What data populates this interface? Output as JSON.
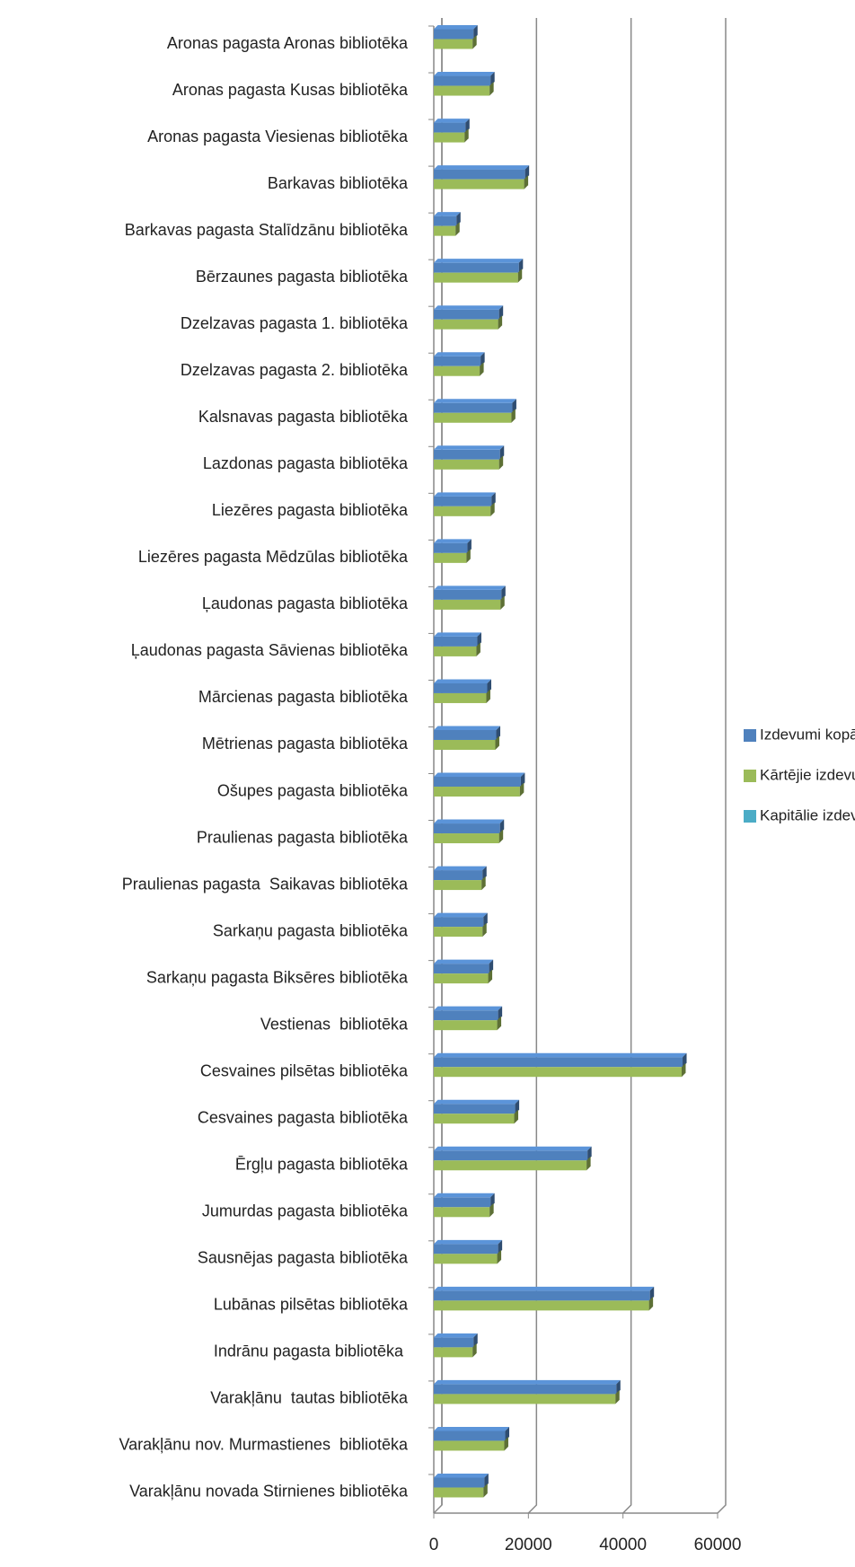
{
  "chart_data": {
    "type": "bar",
    "orientation": "horizontal",
    "categories": [
      "Aronas pagasta Aronas bibliotēka",
      "Aronas pagasta Kusas bibliotēka",
      "Aronas pagasta Viesienas bibliotēka",
      "Barkavas bibliotēka",
      "Barkavas pagasta Stalīdzānu bibliotēka",
      "Bērzaunes pagasta bibliotēka",
      "Dzelzavas pagasta 1. bibliotēka",
      "Dzelzavas pagasta 2. bibliotēka",
      "Kalsnavas pagasta bibliotēka",
      "Lazdonas pagasta bibliotēka",
      "Liezēres pagasta bibliotēka",
      "Liezēres pagasta Mēdzūlas bibliotēka",
      "Ļaudonas pagasta bibliotēka",
      "Ļaudonas pagasta Sāvienas bibliotēka",
      "Mārcienas pagasta bibliotēka",
      "Mētrienas pagasta bibliotēka",
      "Ošupes pagasta bibliotēka",
      "Praulienas pagasta bibliotēka",
      "Praulienas pagasta  Saikavas bibliotēka",
      "Sarkaņu pagasta bibliotēka",
      "Sarkaņu pagasta Biksēres bibliotēka",
      "Vestienas  bibliotēka",
      "Cesvaines pilsētas bibliotēka",
      "Cesvaines pagasta bibliotēka",
      "Ērgļu pagasta bibliotēka",
      "Jumurdas pagasta bibliotēka",
      "Sausnējas pagasta bibliotēka",
      "Lubānas pilsētas bibliotēka",
      "Indrānu pagasta bibliotēka ",
      "Varakļānu  tautas bibliotēka",
      "Varakļānu nov. Murmastienes  bibliotēka",
      "Varakļānu novada Stirnienes bibliotēka"
    ],
    "series": [
      {
        "name": "Izdevumi kopā",
        "color": "#4f81bd",
        "values": [
          8400,
          12000,
          6700,
          19300,
          4800,
          18000,
          13800,
          9900,
          16600,
          14000,
          12200,
          7100,
          14300,
          9200,
          11300,
          13200,
          18400,
          14000,
          10300,
          10500,
          11700,
          13600,
          52600,
          17200,
          32500,
          12000,
          13600,
          45700,
          8400,
          38600,
          15100,
          10700
        ]
      },
      {
        "name": "Kārtējie izdevumi",
        "color": "#9bbb59",
        "values": [
          8200,
          11800,
          6500,
          19100,
          4600,
          17800,
          13600,
          9700,
          16400,
          13800,
          12000,
          6900,
          14100,
          9000,
          11100,
          13000,
          18200,
          13800,
          10100,
          10300,
          11500,
          13400,
          52400,
          17000,
          32300,
          11800,
          13400,
          45500,
          8200,
          38400,
          14900,
          10500
        ]
      },
      {
        "name": "Kapitālie izdevumi",
        "color": "#4bacc6",
        "values": [
          0,
          0,
          0,
          0,
          0,
          0,
          0,
          0,
          0,
          0,
          0,
          0,
          0,
          0,
          0,
          0,
          0,
          0,
          0,
          0,
          0,
          0,
          0,
          0,
          0,
          0,
          0,
          0,
          0,
          0,
          0,
          0
        ]
      }
    ],
    "xlim": [
      0,
      60000
    ],
    "xticks": [
      0,
      20000,
      40000,
      60000
    ],
    "grid": true,
    "legend": "right"
  }
}
